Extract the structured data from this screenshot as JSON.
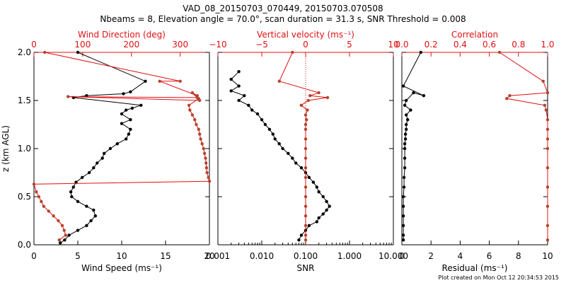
{
  "title": {
    "line1": "VAD_08_20150703_070449, 20150703.070508",
    "line2": "Nbeams = 8, Elevation angle = 70.0°, scan duration = 31.3 s, SNR Threshold = 0.008"
  },
  "footer": "Plot created on Mon Oct 12 20:34:53 2015",
  "colors": {
    "primary": "#000000",
    "secondary": "#b5432c",
    "secondary_line": "#e01010"
  },
  "chart_data": [
    {
      "type": "line",
      "panel": "left",
      "xlabel": "Wind Speed (ms⁻¹)",
      "xlim": [
        0,
        20
      ],
      "x_ticks": [
        "0",
        "5",
        "10",
        "15",
        "20"
      ],
      "top_xlabel": "Wind Direction (deg)",
      "top_xlim": [
        0,
        360
      ],
      "top_ticks": [
        "0",
        "100",
        "200",
        "300"
      ],
      "ylabel": "z (km AGL)",
      "ylim": [
        0,
        2
      ],
      "y_ticks": [
        "0.0",
        "0.5",
        "1.0",
        "1.5",
        "2.0"
      ],
      "series": [
        {
          "axis": "bottom",
          "color": "#000000",
          "points": [
            [
              5.0,
              2.0
            ],
            [
              12.7,
              1.7
            ],
            [
              11.0,
              1.59
            ],
            [
              10.2,
              1.57
            ],
            [
              6.0,
              1.55
            ],
            [
              4.5,
              1.53
            ],
            [
              12.2,
              1.45
            ],
            [
              11.2,
              1.42
            ],
            [
              10.5,
              1.4
            ],
            [
              10.0,
              1.36
            ],
            [
              11.0,
              1.3
            ],
            [
              10.0,
              1.26
            ],
            [
              11.0,
              1.2
            ],
            [
              10.8,
              1.15
            ],
            [
              10.5,
              1.1
            ],
            [
              9.5,
              1.05
            ],
            [
              8.7,
              1.0
            ],
            [
              8.0,
              0.95
            ],
            [
              7.8,
              0.9
            ],
            [
              7.2,
              0.85
            ],
            [
              6.8,
              0.8
            ],
            [
              6.3,
              0.75
            ],
            [
              5.5,
              0.7
            ],
            [
              4.8,
              0.65
            ],
            [
              4.5,
              0.6
            ],
            [
              4.2,
              0.55
            ],
            [
              4.3,
              0.5
            ],
            [
              5.0,
              0.45
            ],
            [
              6.0,
              0.4
            ],
            [
              6.8,
              0.36
            ],
            [
              7.0,
              0.3
            ],
            [
              6.5,
              0.25
            ],
            [
              6.0,
              0.2
            ],
            [
              5.0,
              0.15
            ],
            [
              4.0,
              0.1
            ],
            [
              3.5,
              0.05
            ],
            [
              3.0,
              0.02
            ]
          ]
        },
        {
          "axis": "top",
          "color": "#b5432c",
          "points": [
            [
              22,
              2.0
            ],
            [
              300,
              1.7
            ],
            [
              258,
              1.7
            ],
            [
              335,
              1.55
            ],
            [
              325,
              1.58
            ],
            [
              340,
              1.5
            ],
            [
              70,
              1.54
            ],
            [
              335,
              1.53
            ],
            [
              338,
              1.52
            ],
            [
              318,
              1.45
            ],
            [
              320,
              1.4
            ],
            [
              325,
              1.35
            ],
            [
              330,
              1.3
            ],
            [
              333,
              1.25
            ],
            [
              338,
              1.2
            ],
            [
              340,
              1.15
            ],
            [
              342,
              1.1
            ],
            [
              345,
              1.05
            ],
            [
              348,
              1.0
            ],
            [
              350,
              0.95
            ],
            [
              352,
              0.9
            ],
            [
              353,
              0.85
            ],
            [
              354,
              0.8
            ],
            [
              355,
              0.75
            ],
            [
              358,
              0.7
            ],
            [
              360,
              0.66
            ],
            [
              0,
              0.63
            ],
            [
              5,
              0.55
            ],
            [
              10,
              0.5
            ],
            [
              15,
              0.45
            ],
            [
              20,
              0.4
            ],
            [
              30,
              0.35
            ],
            [
              40,
              0.3
            ],
            [
              50,
              0.25
            ],
            [
              58,
              0.2
            ],
            [
              62,
              0.15
            ],
            [
              65,
              0.1
            ],
            [
              52,
              0.05
            ]
          ]
        }
      ]
    },
    {
      "type": "line",
      "panel": "middle",
      "xlabel": "SNR",
      "xscale": "log",
      "xlim": [
        0.001,
        10.0
      ],
      "x_ticks": [
        "0.001",
        "0.010",
        "0.100",
        "1.000",
        "10.000"
      ],
      "top_xlabel": "Vertical velocity (ms⁻¹)",
      "top_xlim": [
        -10,
        10
      ],
      "top_ticks": [
        "−10",
        "−5",
        "0",
        "5",
        "10"
      ],
      "reference_line": {
        "axis": "top",
        "x": 0,
        "style": "dotted"
      },
      "ylim": [
        0,
        2
      ],
      "series": [
        {
          "axis": "bottom",
          "color": "#000000",
          "points": [
            [
              0.003,
              1.8
            ],
            [
              0.002,
              1.72
            ],
            [
              0.003,
              1.65
            ],
            [
              0.002,
              1.6
            ],
            [
              0.004,
              1.55
            ],
            [
              0.003,
              1.5
            ],
            [
              0.005,
              1.45
            ],
            [
              0.006,
              1.4
            ],
            [
              0.008,
              1.36
            ],
            [
              0.01,
              1.3
            ],
            [
              0.012,
              1.25
            ],
            [
              0.015,
              1.2
            ],
            [
              0.018,
              1.15
            ],
            [
              0.02,
              1.1
            ],
            [
              0.025,
              1.05
            ],
            [
              0.03,
              1.0
            ],
            [
              0.04,
              0.95
            ],
            [
              0.05,
              0.9
            ],
            [
              0.06,
              0.85
            ],
            [
              0.08,
              0.8
            ],
            [
              0.1,
              0.75
            ],
            [
              0.12,
              0.7
            ],
            [
              0.15,
              0.65
            ],
            [
              0.18,
              0.6
            ],
            [
              0.2,
              0.55
            ],
            [
              0.25,
              0.5
            ],
            [
              0.3,
              0.45
            ],
            [
              0.35,
              0.4
            ],
            [
              0.3,
              0.36
            ],
            [
              0.25,
              0.32
            ],
            [
              0.2,
              0.28
            ],
            [
              0.18,
              0.24
            ],
            [
              0.12,
              0.2
            ],
            [
              0.1,
              0.15
            ],
            [
              0.08,
              0.1
            ],
            [
              0.07,
              0.05
            ]
          ]
        },
        {
          "axis": "top",
          "color": "#b5432c",
          "points": [
            [
              -1.5,
              2.0
            ],
            [
              -3.0,
              1.7
            ],
            [
              1.5,
              1.58
            ],
            [
              0.5,
              1.55
            ],
            [
              2.5,
              1.53
            ],
            [
              0.3,
              1.5
            ],
            [
              -0.5,
              1.45
            ],
            [
              0.2,
              1.4
            ],
            [
              0.0,
              1.35
            ],
            [
              0.1,
              1.3
            ],
            [
              0.0,
              1.25
            ],
            [
              0.0,
              1.2
            ],
            [
              0.0,
              1.1
            ],
            [
              0.0,
              1.0
            ],
            [
              0.0,
              0.9
            ],
            [
              0.0,
              0.8
            ],
            [
              0.0,
              0.7
            ],
            [
              0.0,
              0.6
            ],
            [
              0.0,
              0.5
            ],
            [
              0.0,
              0.4
            ],
            [
              0.0,
              0.3
            ],
            [
              0.0,
              0.2
            ],
            [
              0.0,
              0.1
            ],
            [
              0.0,
              0.05
            ]
          ]
        }
      ]
    },
    {
      "type": "line",
      "panel": "right",
      "xlabel": "Residual (ms⁻¹)",
      "xlim": [
        0,
        10
      ],
      "x_ticks": [
        "0",
        "2",
        "4",
        "6",
        "8",
        "10"
      ],
      "top_xlabel": "Correlation",
      "top_xlim": [
        0.0,
        1.0
      ],
      "top_ticks": [
        "0.0",
        "0.2",
        "0.4",
        "0.6",
        "0.8",
        "1.0"
      ],
      "ylim": [
        0,
        2
      ],
      "series": [
        {
          "axis": "bottom",
          "color": "#000000",
          "points": [
            [
              1.3,
              2.0
            ],
            [
              0.1,
              1.65
            ],
            [
              1.5,
              1.55
            ],
            [
              0.8,
              1.58
            ],
            [
              0.3,
              1.5
            ],
            [
              0.2,
              1.45
            ],
            [
              0.6,
              1.4
            ],
            [
              0.3,
              1.35
            ],
            [
              0.4,
              1.3
            ],
            [
              0.3,
              1.25
            ],
            [
              0.3,
              1.2
            ],
            [
              0.25,
              1.15
            ],
            [
              0.25,
              1.1
            ],
            [
              0.2,
              1.05
            ],
            [
              0.2,
              1.0
            ],
            [
              0.2,
              0.9
            ],
            [
              0.2,
              0.8
            ],
            [
              0.15,
              0.7
            ],
            [
              0.15,
              0.6
            ],
            [
              0.1,
              0.5
            ],
            [
              0.1,
              0.4
            ],
            [
              0.1,
              0.3
            ],
            [
              0.1,
              0.2
            ],
            [
              0.1,
              0.1
            ],
            [
              0.1,
              0.05
            ]
          ]
        },
        {
          "axis": "top",
          "color": "#b5432c",
          "points": [
            [
              0.67,
              2.0
            ],
            [
              0.97,
              1.7
            ],
            [
              1.0,
              1.58
            ],
            [
              0.74,
              1.55
            ],
            [
              0.72,
              1.52
            ],
            [
              0.98,
              1.45
            ],
            [
              0.99,
              1.4
            ],
            [
              1.0,
              1.3
            ],
            [
              1.0,
              1.2
            ],
            [
              1.0,
              1.1
            ],
            [
              1.0,
              1.0
            ],
            [
              1.0,
              0.8
            ],
            [
              1.0,
              0.6
            ],
            [
              1.0,
              0.4
            ],
            [
              1.0,
              0.2
            ],
            [
              1.0,
              0.05
            ]
          ]
        }
      ]
    }
  ]
}
